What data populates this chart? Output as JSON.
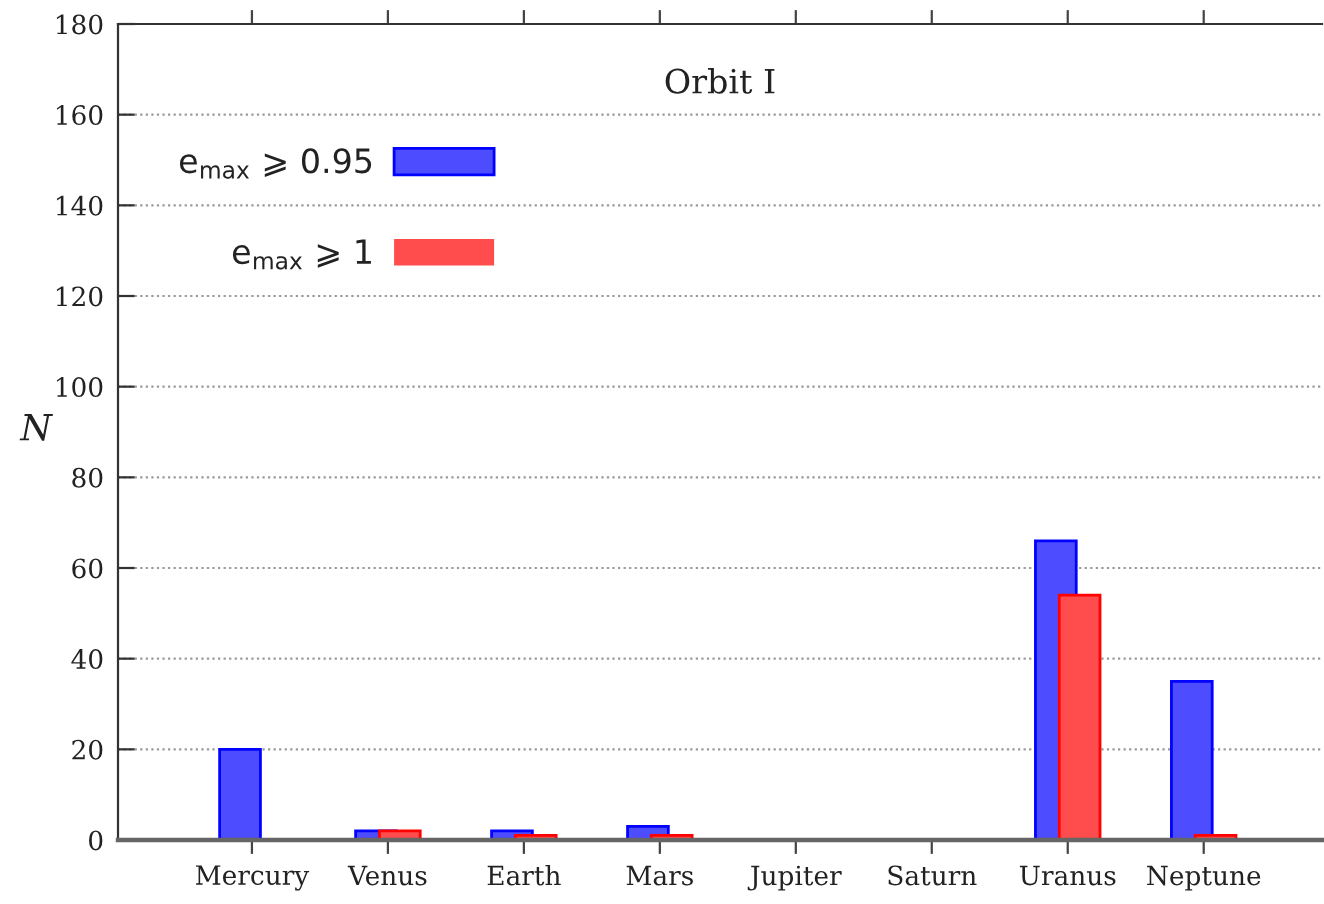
{
  "chart_data": {
    "type": "bar",
    "title": "Orbit I",
    "ylabel": "N",
    "categories": [
      "Mercury",
      "Venus",
      "Earth",
      "Mars",
      "Jupiter",
      "Saturn",
      "Uranus",
      "Neptune"
    ],
    "series": [
      {
        "name": "e$_{max}$ ⩾ 0.95",
        "color": "#4d4dff",
        "values": [
          20,
          2,
          2,
          3,
          0,
          0,
          66,
          35
        ]
      },
      {
        "name": "e$_{max}$ ⩾ 1",
        "color": "#ff4d4d",
        "values": [
          0,
          2,
          1,
          1,
          0,
          0,
          54,
          1
        ]
      }
    ],
    "ylim": [
      0,
      180
    ],
    "yticks": [
      0,
      20,
      40,
      60,
      80,
      100,
      120,
      140,
      160,
      180
    ],
    "grid": "y",
    "legend": "top left"
  }
}
